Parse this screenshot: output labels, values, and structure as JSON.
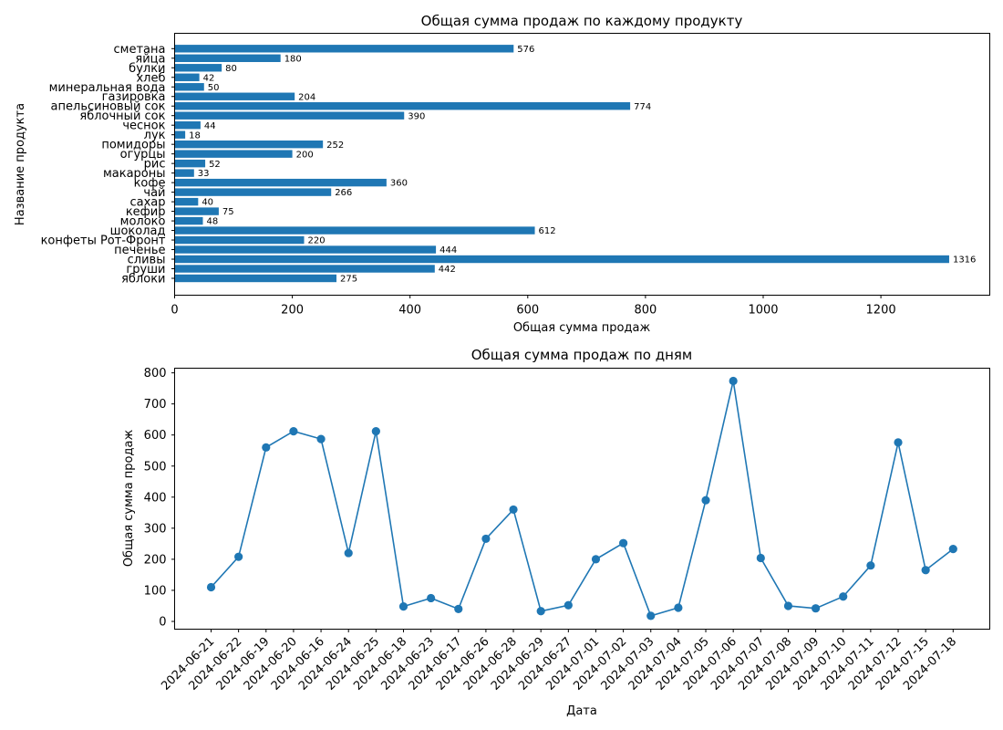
{
  "chart_data": [
    {
      "type": "bar",
      "orientation": "horizontal",
      "title": "Общая сумма продаж по каждому продукту",
      "xlabel": "Общая сумма продаж",
      "ylabel": "Название продукта",
      "xlim": [
        0,
        1385
      ],
      "xticks": [
        0,
        200,
        400,
        600,
        800,
        1000,
        1200
      ],
      "grid": false,
      "color": "#1f77b4",
      "categories": [
        "яблоки",
        "груши",
        "сливы",
        "печенье",
        "конфеты Рот-Фронт",
        "шоколад",
        "молоко",
        "кефир",
        "сахар",
        "чай",
        "кофе",
        "макароны",
        "рис",
        "огурцы",
        "помидоры",
        "лук",
        "чеснок",
        "яблочный сок",
        "апельсиновый сок",
        "газировка",
        "минеральная вода",
        "хлеб",
        "булки",
        "яйца",
        "сметана"
      ],
      "values": [
        275,
        442,
        1316,
        444,
        220,
        612,
        48,
        75,
        40,
        266,
        360,
        33,
        52,
        200,
        252,
        18,
        44,
        390,
        774,
        204,
        50,
        42,
        80,
        180,
        576
      ],
      "data_labels": [
        "275",
        "442",
        "1316",
        "444",
        "220",
        "612",
        "48",
        "75",
        "40",
        "266",
        "360",
        "33",
        "52",
        "200",
        "252",
        "18",
        "44",
        "390",
        "774",
        "204",
        "50",
        "42",
        "80",
        "180",
        "576"
      ]
    },
    {
      "type": "line",
      "title": "Общая сумма продаж по дням",
      "xlabel": "Дата",
      "ylabel": "Общая сумма продаж",
      "ylim": [
        -25,
        815
      ],
      "yticks": [
        0,
        100,
        200,
        300,
        400,
        500,
        600,
        700,
        800
      ],
      "grid": false,
      "marker": "circle",
      "color": "#1f77b4",
      "x": [
        "2024-06-21",
        "2024-06-22",
        "2024-06-19",
        "2024-06-20",
        "2024-06-16",
        "2024-06-24",
        "2024-06-25",
        "2024-06-18",
        "2024-06-23",
        "2024-06-17",
        "2024-06-26",
        "2024-06-28",
        "2024-06-29",
        "2024-06-27",
        "2024-07-01",
        "2024-07-02",
        "2024-07-03",
        "2024-07-04",
        "2024-07-05",
        "2024-07-06",
        "2024-07-07",
        "2024-07-08",
        "2024-07-09",
        "2024-07-10",
        "2024-07-11",
        "2024-07-12",
        "2024-07-15",
        "2024-07-18"
      ],
      "y": [
        110,
        208,
        560,
        612,
        587,
        220,
        612,
        48,
        75,
        40,
        266,
        360,
        33,
        52,
        200,
        252,
        18,
        44,
        390,
        774,
        204,
        50,
        42,
        80,
        180,
        576,
        165,
        233
      ]
    }
  ]
}
